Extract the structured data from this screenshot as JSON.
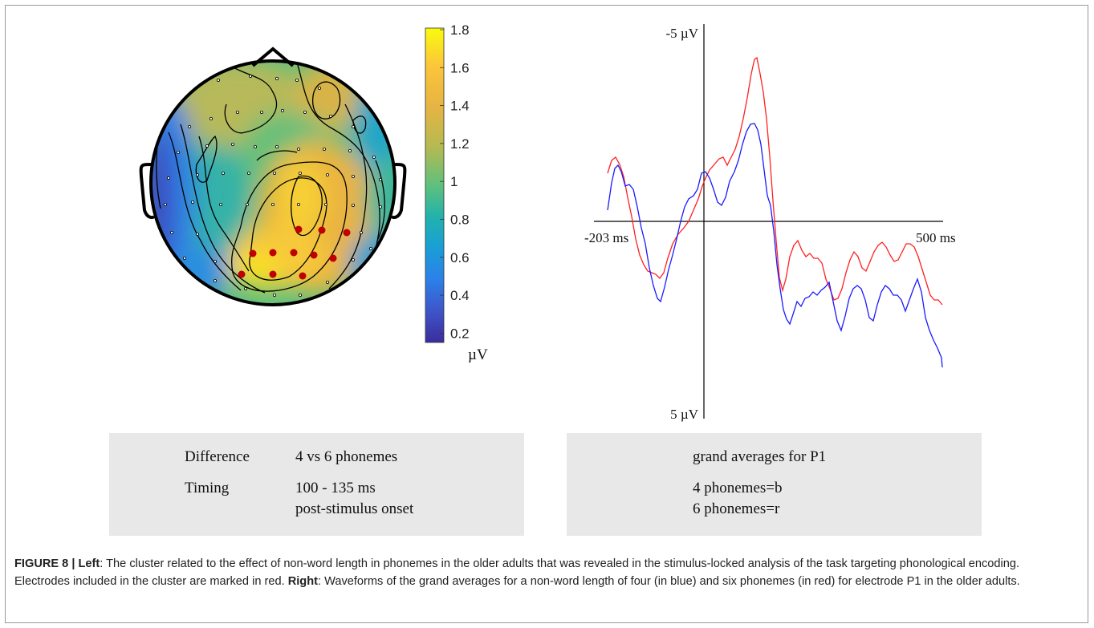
{
  "topomap": {
    "colorbar": {
      "ticks": [
        "1.8",
        "1.6",
        "1.4",
        "1.2",
        "1",
        "0.8",
        "0.6",
        "0.4",
        "0.2"
      ],
      "unit": "µV",
      "colors": [
        "#f9fb0e",
        "#fcc13a",
        "#e5b043",
        "#b9b84f",
        "#6bc078",
        "#26b4a8",
        "#1a9ed6",
        "#2b7cea",
        "#3e53c8",
        "#3c2ea0"
      ]
    },
    "cluster_color": "#c00000"
  },
  "waveform": {
    "y_top_label": "-5 µV",
    "y_bottom_label": "5 µV",
    "x_left_label": "-203 ms",
    "x_right_label": "500 ms",
    "colors": {
      "four_phonemes": "#1a1aff",
      "six_phonemes": "#ff2020"
    }
  },
  "left_box": {
    "row1_label": "Difference",
    "row1_value": "4 vs 6 phonemes",
    "row2_label": "Timing",
    "row2_value_line1": "100 - 135 ms",
    "row2_value_line2": "post-stimulus onset"
  },
  "right_box": {
    "title": "grand averages for P1",
    "line1": "4 phonemes=b",
    "line2": "6 phonemes=r"
  },
  "caption": {
    "figure_label": "FIGURE 8 |",
    "left_label": "Left",
    "left_text": ": The cluster related to the effect of non-word length in phonemes in the older adults that was revealed in the stimulus-locked analysis of the task targeting phonological encoding. Electrodes included in the cluster are marked in red.",
    "right_label": "Right",
    "right_text": ": Waveforms of the grand averages for a non-word length of four (in blue) and six phonemes (in red) for electrode P1 in the older adults."
  }
}
